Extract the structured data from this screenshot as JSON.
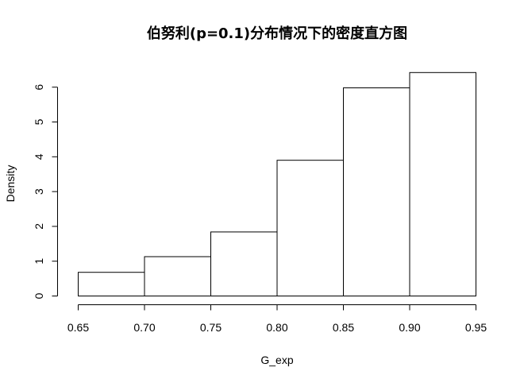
{
  "chart_data": {
    "type": "bar",
    "title": "伯努利(p=0.1)分布情况下的密度直方图",
    "xlabel": "G_exp",
    "ylabel": "Density",
    "bins": [
      {
        "x0": 0.65,
        "x1": 0.7,
        "density": 0.68
      },
      {
        "x0": 0.7,
        "x1": 0.75,
        "density": 1.13
      },
      {
        "x0": 0.75,
        "x1": 0.8,
        "density": 1.84
      },
      {
        "x0": 0.8,
        "x1": 0.85,
        "density": 3.9
      },
      {
        "x0": 0.85,
        "x1": 0.9,
        "density": 5.98
      },
      {
        "x0": 0.9,
        "x1": 0.95,
        "density": 6.42
      }
    ],
    "xlim": [
      0.65,
      0.95
    ],
    "ylim": [
      0,
      6.5
    ],
    "x_ticks": [
      "0.65",
      "0.70",
      "0.75",
      "0.80",
      "0.85",
      "0.90",
      "0.95"
    ],
    "y_ticks": [
      "0",
      "1",
      "2",
      "3",
      "4",
      "5",
      "6"
    ],
    "grid": false,
    "colors": {
      "bar_fill": "#ffffff",
      "bar_stroke": "#000000",
      "axis": "#000000"
    }
  }
}
